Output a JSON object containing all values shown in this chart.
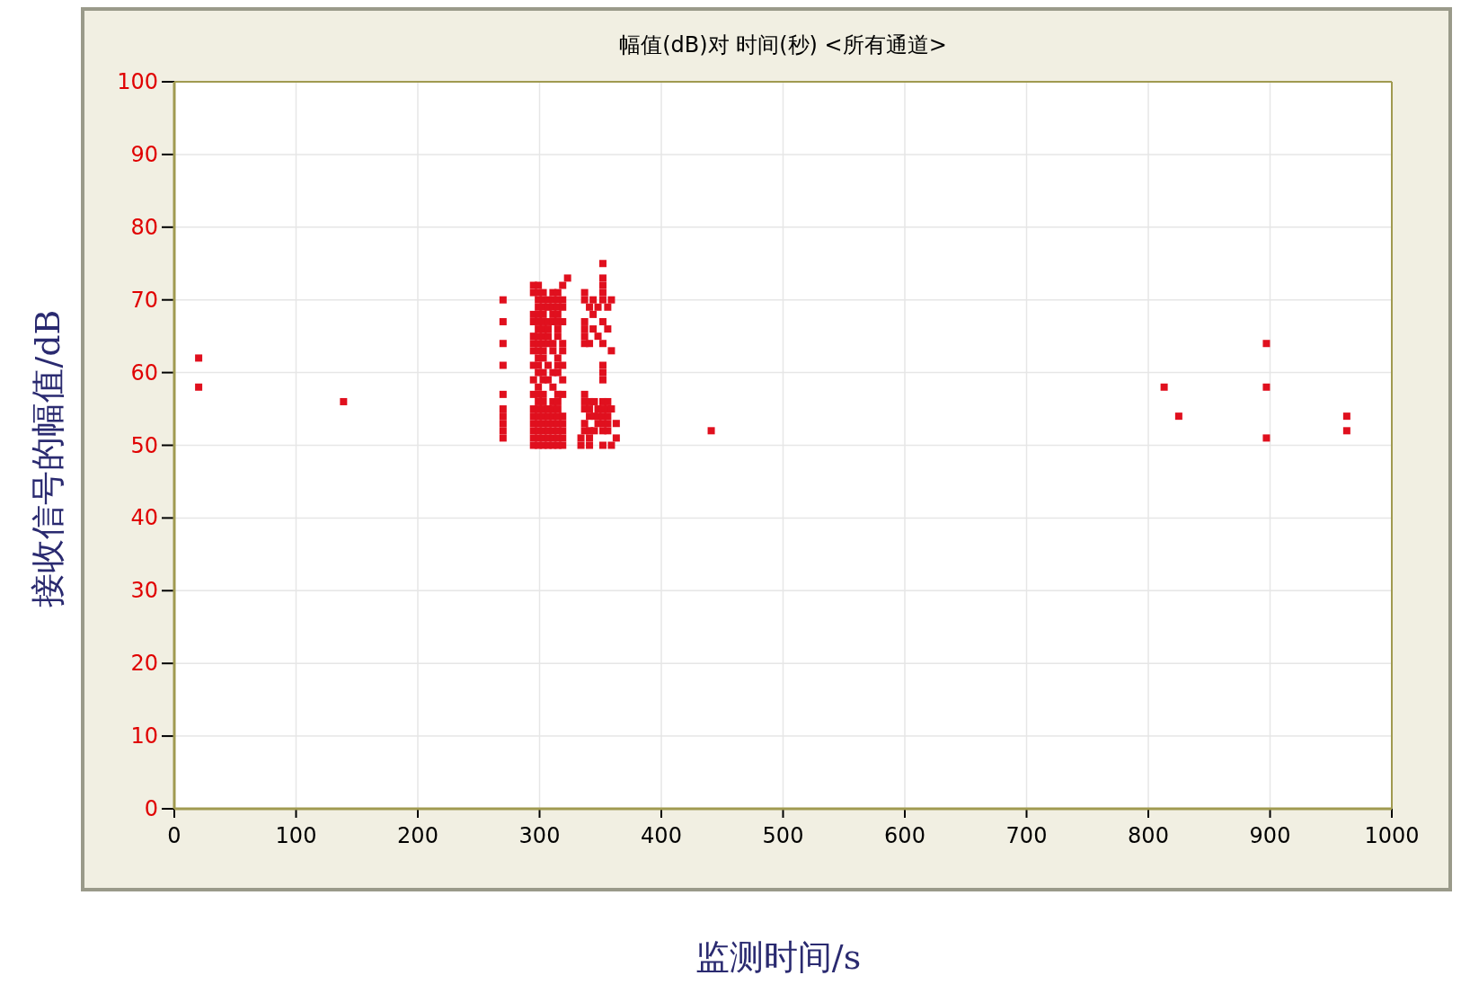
{
  "chart_data": {
    "type": "scatter",
    "title": "幅值(dB)对 时间(秒) <所有通道>",
    "xlabel": "监测时间/s",
    "ylabel": "接收信号的幅值/dB",
    "xlim": [
      0,
      1000
    ],
    "ylim": [
      0,
      100
    ],
    "xticks": [
      0,
      100,
      200,
      300,
      400,
      500,
      600,
      700,
      800,
      900,
      1000
    ],
    "yticks": [
      0,
      10,
      20,
      30,
      40,
      50,
      60,
      70,
      80,
      90,
      100
    ],
    "grid": true,
    "marker": "square",
    "series": [
      {
        "color": "#e0101e",
        "x": [
          20,
          20,
          139,
          441,
          813,
          825,
          897,
          897,
          897,
          963,
          963,
          270,
          270,
          270,
          270,
          270,
          270,
          270,
          270,
          270,
          270,
          295,
          299,
          319,
          323,
          295,
          299,
          303,
          311,
          315,
          299,
          303,
          307,
          311,
          315,
          319,
          299,
          303,
          307,
          311,
          315,
          319,
          295,
          299,
          303,
          311,
          315,
          295,
          299,
          303,
          307,
          311,
          315,
          319,
          299,
          303,
          307,
          315,
          295,
          299,
          303,
          307,
          315,
          295,
          299,
          303,
          307,
          311,
          319,
          295,
          299,
          303,
          311,
          319,
          299,
          303,
          315,
          295,
          299,
          307,
          315,
          319,
          299,
          303,
          311,
          315,
          295,
          303,
          307,
          319,
          299,
          311,
          295,
          299,
          303,
          315,
          319,
          299,
          303,
          311,
          315,
          295,
          299,
          303,
          307,
          311,
          315,
          295,
          299,
          303,
          307,
          311,
          315,
          319,
          295,
          299,
          303,
          307,
          311,
          315,
          319,
          295,
          299,
          303,
          307,
          311,
          315,
          319,
          295,
          299,
          303,
          307,
          311,
          315,
          319,
          295,
          299,
          303,
          307,
          311,
          315,
          319,
          352,
          352,
          352,
          337,
          352,
          337,
          344,
          352,
          359,
          341,
          348,
          356,
          344,
          337,
          352,
          337,
          344,
          356,
          337,
          348,
          337,
          341,
          352,
          359,
          352,
          352,
          352,
          337,
          337,
          341,
          345,
          352,
          356,
          337,
          341,
          348,
          352,
          356,
          359,
          341,
          345,
          348,
          352,
          356,
          337,
          348,
          352,
          356,
          363,
          337,
          341,
          345,
          352,
          356,
          334,
          341,
          363,
          334,
          341,
          352,
          359
        ],
        "values": [
          62,
          58,
          56,
          52,
          58,
          54,
          64,
          58,
          51,
          54,
          52,
          70,
          67,
          64,
          61,
          57,
          55,
          54,
          53,
          52,
          51,
          72,
          72,
          72,
          73,
          71,
          71,
          71,
          71,
          71,
          70,
          70,
          70,
          70,
          70,
          70,
          69,
          69,
          69,
          69,
          69,
          69,
          68,
          68,
          68,
          68,
          68,
          67,
          67,
          67,
          67,
          67,
          67,
          67,
          66,
          66,
          66,
          66,
          65,
          65,
          65,
          65,
          65,
          64,
          64,
          64,
          64,
          64,
          64,
          63,
          63,
          63,
          63,
          63,
          62,
          62,
          62,
          61,
          61,
          61,
          61,
          61,
          60,
          60,
          60,
          60,
          59,
          59,
          59,
          59,
          58,
          58,
          57,
          57,
          57,
          57,
          57,
          56,
          56,
          56,
          56,
          55,
          55,
          55,
          55,
          55,
          55,
          54,
          54,
          54,
          54,
          54,
          54,
          54,
          53,
          53,
          53,
          53,
          53,
          53,
          53,
          52,
          52,
          52,
          52,
          52,
          52,
          52,
          51,
          51,
          51,
          51,
          51,
          51,
          51,
          50,
          50,
          50,
          50,
          50,
          50,
          50,
          75,
          73,
          72,
          71,
          71,
          70,
          70,
          70,
          70,
          69,
          69,
          69,
          68,
          67,
          67,
          66,
          66,
          66,
          65,
          65,
          64,
          64,
          64,
          63,
          61,
          60,
          59,
          57,
          56,
          56,
          56,
          56,
          56,
          55,
          55,
          55,
          55,
          55,
          55,
          54,
          54,
          54,
          54,
          54,
          53,
          53,
          53,
          53,
          53,
          52,
          52,
          52,
          52,
          52,
          51,
          51,
          51,
          50,
          50,
          50,
          50
        ]
      }
    ]
  }
}
